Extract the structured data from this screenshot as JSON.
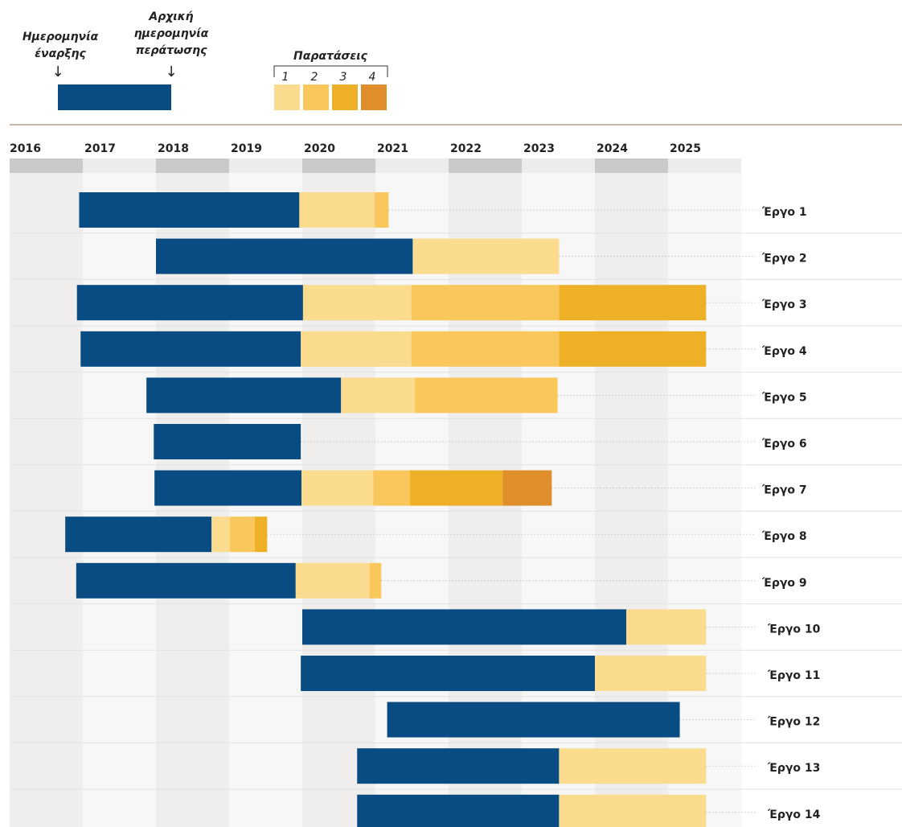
{
  "chart_data": {
    "type": "gantt",
    "legend": {
      "start_label": [
        "Ημερομηνία",
        "έναρξης"
      ],
      "end_label": [
        "Αρχική",
        "ημερομηνία",
        "περάτωσης"
      ],
      "extensions_title": "Παρατάσεις",
      "extensions": [
        "1",
        "2",
        "3",
        "4"
      ]
    },
    "color": "#084c83",
    "extension_colors": [
      "#fbdc8e",
      "#f9c75c",
      "#eeb027",
      "#e08e2b"
    ],
    "xlim": [
      2016,
      2026
    ],
    "xticks": [
      2016,
      2017,
      2018,
      2019,
      2020,
      2021,
      2022,
      2023,
      2024,
      2025
    ],
    "rows": [
      {
        "name": "Έργο 1",
        "start": 2016.95,
        "end": 2019.96,
        "extensions": [
          2020.99,
          2021.18
        ]
      },
      {
        "name": "Έργο 2",
        "start": 2018.0,
        "end": 2021.51,
        "extensions": [
          2023.51
        ]
      },
      {
        "name": "Έργο 3",
        "start": 2016.92,
        "end": 2020.01,
        "extensions": [
          2021.49,
          2023.51,
          2025.52
        ]
      },
      {
        "name": "Έργο 4",
        "start": 2016.97,
        "end": 2019.98,
        "extensions": [
          2021.49,
          2023.51,
          2025.52
        ]
      },
      {
        "name": "Έργο 5",
        "start": 2017.87,
        "end": 2020.53,
        "extensions": [
          2021.54,
          2023.49
        ]
      },
      {
        "name": "Έργο 6",
        "start": 2017.97,
        "end": 2019.98,
        "extensions": []
      },
      {
        "name": "Έργο 7",
        "start": 2017.98,
        "end": 2019.99,
        "extensions": [
          2020.97,
          2021.47,
          2022.74,
          2023.41
        ]
      },
      {
        "name": "Έργο 8",
        "start": 2016.76,
        "end": 2018.76,
        "extensions": [
          2019.01,
          2019.35,
          2019.52
        ]
      },
      {
        "name": "Έργο 9",
        "start": 2016.91,
        "end": 2019.91,
        "extensions": [
          2020.92,
          2021.08
        ]
      },
      {
        "name": "Έργο 10",
        "start": 2020.0,
        "end": 2024.43,
        "extensions": [
          2025.52
        ]
      },
      {
        "name": "Έργο 11",
        "start": 2019.98,
        "end": 2024.0,
        "extensions": [
          2025.52
        ]
      },
      {
        "name": "Έργο 12",
        "start": 2021.16,
        "end": 2025.16,
        "extensions": []
      },
      {
        "name": "Έργο 13",
        "start": 2020.75,
        "end": 2023.51,
        "extensions": [
          2025.52
        ]
      },
      {
        "name": "Έργο 14",
        "start": 2020.75,
        "end": 2023.51,
        "extensions": [
          2025.52
        ]
      }
    ]
  }
}
